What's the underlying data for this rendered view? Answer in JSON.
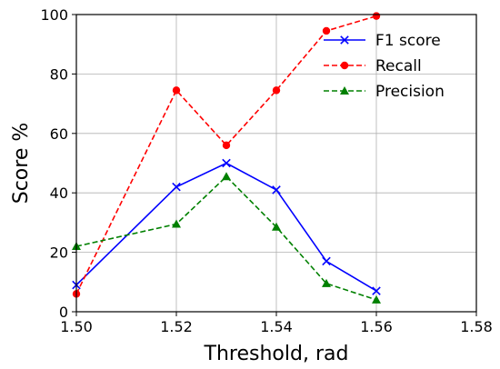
{
  "chart_data": {
    "type": "line",
    "title": "",
    "xlabel": "Threshold, rad",
    "ylabel": "Score %",
    "xlim": [
      1.5,
      1.58
    ],
    "ylim": [
      0,
      100
    ],
    "xticks": [
      "1.50",
      "1.52",
      "1.54",
      "1.56",
      "1.58"
    ],
    "yticks": [
      "0",
      "20",
      "40",
      "60",
      "80",
      "100"
    ],
    "grid": true,
    "legend_position": "top-right",
    "series": [
      {
        "name": "F1 score",
        "color": "#0000ff",
        "linestyle": "solid",
        "marker": "x",
        "x": [
          1.5,
          1.52,
          1.53,
          1.54,
          1.55,
          1.56
        ],
        "y": [
          9,
          42,
          50,
          41,
          17,
          7
        ]
      },
      {
        "name": "Recall",
        "color": "#ff0000",
        "linestyle": "dashed",
        "marker": "circle",
        "x": [
          1.5,
          1.52,
          1.53,
          1.54,
          1.55,
          1.56
        ],
        "y": [
          6,
          74.5,
          56,
          74.5,
          94.5,
          99.5
        ]
      },
      {
        "name": "Precision",
        "color": "#008000",
        "linestyle": "dashed",
        "marker": "triangle",
        "x": [
          1.5,
          1.52,
          1.53,
          1.54,
          1.55,
          1.56
        ],
        "y": [
          22,
          29.5,
          45.5,
          28.5,
          9.5,
          4
        ]
      }
    ]
  }
}
